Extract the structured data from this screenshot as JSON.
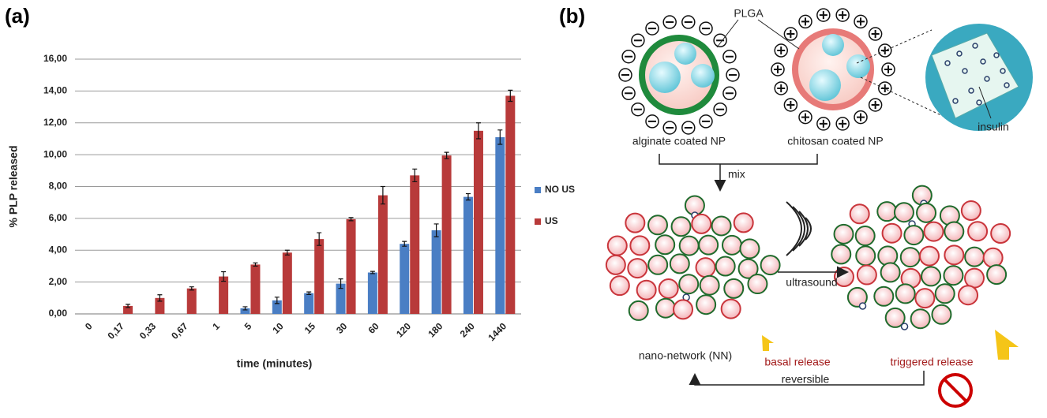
{
  "panels": [
    "(a)",
    "(b)"
  ],
  "chart_data": {
    "type": "bar",
    "ylabel": "% PLP released",
    "xlabel": "time (minutes)",
    "categories": [
      "0",
      "0,17",
      "0,33",
      "0,67",
      "1",
      "5",
      "10",
      "15",
      "30",
      "60",
      "120",
      "180",
      "240",
      "1440"
    ],
    "series": [
      {
        "name": "NO US",
        "color": "#4a7ec4",
        "values": [
          0,
          0,
          0,
          0,
          0,
          0.35,
          0.85,
          1.3,
          1.9,
          2.6,
          4.4,
          5.25,
          7.35,
          11.1
        ],
        "errors": [
          0,
          0,
          0,
          0,
          0,
          0.1,
          0.2,
          0.08,
          0.3,
          0.07,
          0.15,
          0.4,
          0.2,
          0.45
        ]
      },
      {
        "name": "US",
        "color": "#b83a3a",
        "values": [
          0,
          0.5,
          1.0,
          1.6,
          2.35,
          3.1,
          3.85,
          4.7,
          5.95,
          7.45,
          8.7,
          9.95,
          11.5,
          13.7
        ],
        "errors": [
          0,
          0.1,
          0.2,
          0.1,
          0.3,
          0.1,
          0.15,
          0.4,
          0.1,
          0.55,
          0.4,
          0.2,
          0.5,
          0.35
        ]
      }
    ],
    "ylim": [
      0,
      16
    ],
    "yticks": [
      {
        "value": 0,
        "label": "0,00"
      },
      {
        "value": 2,
        "label": "2,00"
      },
      {
        "value": 4,
        "label": "4,00"
      },
      {
        "value": 6,
        "label": "6,00"
      },
      {
        "value": 8,
        "label": "8,00"
      },
      {
        "value": 10,
        "label": "10,00"
      },
      {
        "value": 12,
        "label": "12,00"
      },
      {
        "value": 14,
        "label": "14,00"
      },
      {
        "value": 16,
        "label": "16,00"
      }
    ],
    "grid": true,
    "legend": "right"
  },
  "diagram": {
    "plga": "PLGA",
    "alginate": "alginate coated NP",
    "chitosan": "chitosan coated NP",
    "insulin": "insulin",
    "mix": "mix",
    "ultrasound": "ultrasound",
    "network": "nano-network (NN)",
    "basal": "basal release",
    "triggered": "triggered release",
    "reversible": "reversible"
  }
}
